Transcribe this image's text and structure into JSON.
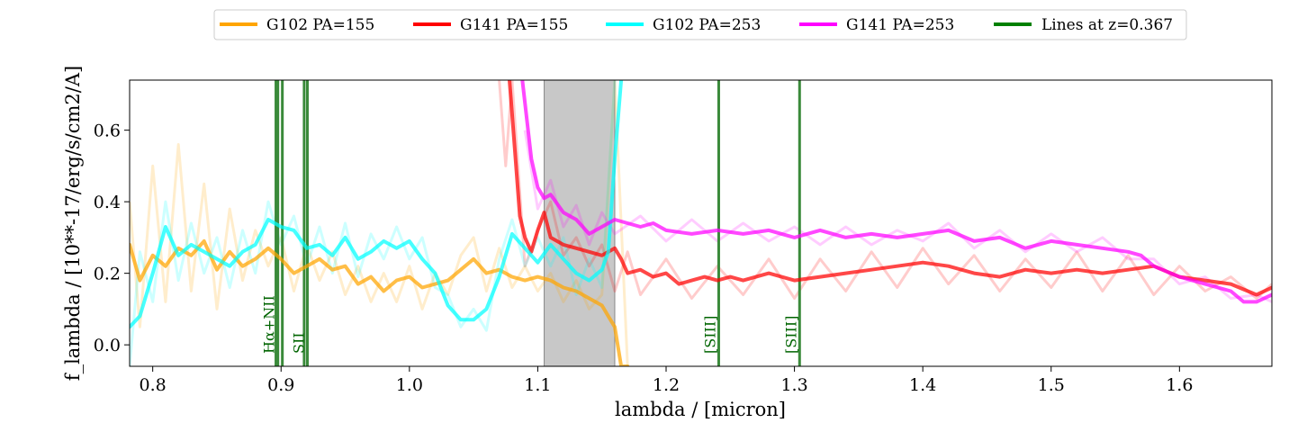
{
  "chart_data": {
    "type": "line",
    "xlabel": "lambda / [micron]",
    "ylabel": "f_lambda / [10**-17/erg/s/cm2/A]",
    "xlim": [
      0.782,
      1.672
    ],
    "ylim": [
      -0.06,
      0.74
    ],
    "x_ticks": [
      0.8,
      0.9,
      1.0,
      1.1,
      1.2,
      1.3,
      1.4,
      1.5,
      1.6
    ],
    "x_tick_labels": [
      "0.8",
      "0.9",
      "1.0",
      "1.1",
      "1.2",
      "1.3",
      "1.4",
      "1.5",
      "1.6"
    ],
    "y_ticks": [
      0.0,
      0.2,
      0.4,
      0.6
    ],
    "y_tick_labels": [
      "0.0",
      "0.2",
      "0.4",
      "0.6"
    ],
    "legend_position": "top-center, outside plot",
    "shaded_region": {
      "x": [
        1.105,
        1.16
      ],
      "color": "#c8c8c8"
    },
    "legend": [
      {
        "label": "G102 PA=155",
        "color": "#ffa500"
      },
      {
        "label": "G141 PA=155",
        "color": "#ff0000"
      },
      {
        "label": "G102 PA=253",
        "color": "#00ffff"
      },
      {
        "label": "G141 PA=253",
        "color": "#ff00ff"
      },
      {
        "label": "Lines at z=0.367",
        "color": "#008000"
      }
    ],
    "emission_lines": {
      "color": "#3a8a3a",
      "lines": [
        {
          "x": 0.896,
          "label": ""
        },
        {
          "x": 0.8975,
          "label": "Hα+NII"
        },
        {
          "x": 0.901,
          "label": ""
        },
        {
          "x": 0.918,
          "label": ""
        },
        {
          "x": 0.9205,
          "label": "SII"
        },
        {
          "x": 1.241,
          "label": "[SIII]"
        },
        {
          "x": 1.304,
          "label": "[SIII]"
        }
      ]
    },
    "series": [
      {
        "name": "G102 PA=155",
        "color": "#ffa500",
        "x": [
          0.782,
          0.79,
          0.8,
          0.81,
          0.82,
          0.83,
          0.84,
          0.85,
          0.86,
          0.87,
          0.88,
          0.89,
          0.9,
          0.91,
          0.92,
          0.93,
          0.94,
          0.95,
          0.96,
          0.97,
          0.98,
          0.99,
          1.0,
          1.01,
          1.02,
          1.03,
          1.04,
          1.05,
          1.06,
          1.07,
          1.08,
          1.09,
          1.1,
          1.11,
          1.12,
          1.13,
          1.14,
          1.15,
          1.155,
          1.16,
          1.165,
          1.17
        ],
        "y": [
          0.28,
          0.18,
          0.25,
          0.22,
          0.27,
          0.25,
          0.29,
          0.21,
          0.26,
          0.22,
          0.24,
          0.27,
          0.24,
          0.2,
          0.22,
          0.24,
          0.21,
          0.22,
          0.17,
          0.19,
          0.15,
          0.18,
          0.19,
          0.16,
          0.17,
          0.18,
          0.21,
          0.24,
          0.2,
          0.21,
          0.19,
          0.18,
          0.19,
          0.18,
          0.16,
          0.15,
          0.13,
          0.11,
          0.08,
          0.05,
          -0.06,
          -0.06
        ]
      },
      {
        "name": "G141 PA=155",
        "color": "#ff0000",
        "x": [
          1.078,
          1.082,
          1.086,
          1.09,
          1.095,
          1.1,
          1.105,
          1.11,
          1.12,
          1.13,
          1.14,
          1.15,
          1.16,
          1.165,
          1.17,
          1.18,
          1.19,
          1.2,
          1.21,
          1.22,
          1.23,
          1.24,
          1.25,
          1.26,
          1.28,
          1.3,
          1.32,
          1.34,
          1.36,
          1.38,
          1.4,
          1.42,
          1.44,
          1.46,
          1.48,
          1.5,
          1.52,
          1.54,
          1.56,
          1.58,
          1.6,
          1.62,
          1.64,
          1.66,
          1.672
        ],
        "y": [
          0.74,
          0.55,
          0.36,
          0.3,
          0.26,
          0.32,
          0.37,
          0.3,
          0.28,
          0.27,
          0.26,
          0.25,
          0.27,
          0.24,
          0.2,
          0.21,
          0.19,
          0.2,
          0.17,
          0.18,
          0.19,
          0.18,
          0.19,
          0.18,
          0.2,
          0.18,
          0.19,
          0.2,
          0.21,
          0.22,
          0.23,
          0.22,
          0.2,
          0.19,
          0.21,
          0.2,
          0.21,
          0.2,
          0.21,
          0.22,
          0.19,
          0.18,
          0.17,
          0.14,
          0.16
        ]
      },
      {
        "name": "G102 PA=253",
        "color": "#00ffff",
        "x": [
          0.782,
          0.79,
          0.8,
          0.81,
          0.82,
          0.83,
          0.84,
          0.85,
          0.86,
          0.87,
          0.88,
          0.89,
          0.9,
          0.91,
          0.92,
          0.93,
          0.94,
          0.95,
          0.96,
          0.97,
          0.98,
          0.99,
          1.0,
          1.01,
          1.02,
          1.03,
          1.04,
          1.05,
          1.06,
          1.07,
          1.08,
          1.09,
          1.1,
          1.11,
          1.12,
          1.13,
          1.14,
          1.15,
          1.155,
          1.16,
          1.165
        ],
        "y": [
          0.05,
          0.08,
          0.2,
          0.33,
          0.25,
          0.28,
          0.26,
          0.24,
          0.22,
          0.26,
          0.28,
          0.35,
          0.33,
          0.32,
          0.27,
          0.28,
          0.25,
          0.3,
          0.24,
          0.26,
          0.29,
          0.27,
          0.29,
          0.24,
          0.2,
          0.11,
          0.07,
          0.07,
          0.1,
          0.19,
          0.31,
          0.27,
          0.23,
          0.28,
          0.24,
          0.2,
          0.18,
          0.21,
          0.26,
          0.52,
          0.74
        ]
      },
      {
        "name": "G141 PA=253",
        "color": "#ff00ff",
        "x": [
          1.088,
          1.095,
          1.1,
          1.105,
          1.11,
          1.12,
          1.13,
          1.14,
          1.15,
          1.16,
          1.17,
          1.18,
          1.19,
          1.2,
          1.22,
          1.24,
          1.26,
          1.28,
          1.3,
          1.32,
          1.34,
          1.36,
          1.38,
          1.4,
          1.42,
          1.44,
          1.46,
          1.48,
          1.5,
          1.52,
          1.54,
          1.56,
          1.57,
          1.58,
          1.6,
          1.62,
          1.64,
          1.65,
          1.66,
          1.672
        ],
        "y": [
          0.74,
          0.52,
          0.44,
          0.41,
          0.42,
          0.37,
          0.35,
          0.31,
          0.33,
          0.35,
          0.34,
          0.33,
          0.34,
          0.32,
          0.31,
          0.32,
          0.31,
          0.32,
          0.3,
          0.32,
          0.3,
          0.31,
          0.3,
          0.31,
          0.32,
          0.29,
          0.3,
          0.27,
          0.29,
          0.28,
          0.27,
          0.26,
          0.25,
          0.22,
          0.19,
          0.17,
          0.15,
          0.12,
          0.12,
          0.14
        ]
      }
    ],
    "noisy_series": [
      {
        "name": "G102 PA=155 unsmoothed",
        "color": "#ffa500",
        "x": [
          0.782,
          0.79,
          0.8,
          0.81,
          0.82,
          0.83,
          0.84,
          0.85,
          0.86,
          0.87,
          0.88,
          0.89,
          0.9,
          0.91,
          0.92,
          0.93,
          0.94,
          0.95,
          0.96,
          0.97,
          0.98,
          0.99,
          1.0,
          1.01,
          1.02,
          1.03,
          1.04,
          1.05,
          1.06,
          1.07,
          1.08,
          1.09,
          1.1,
          1.11,
          1.12,
          1.13,
          1.14,
          1.15,
          1.16,
          1.17
        ],
        "y": [
          0.4,
          0.05,
          0.5,
          0.12,
          0.56,
          0.15,
          0.45,
          0.1,
          0.38,
          0.18,
          0.32,
          0.22,
          0.3,
          0.15,
          0.28,
          0.18,
          0.26,
          0.14,
          0.22,
          0.12,
          0.2,
          0.12,
          0.22,
          0.1,
          0.2,
          0.14,
          0.25,
          0.3,
          0.15,
          0.27,
          0.16,
          0.22,
          0.15,
          0.2,
          0.12,
          0.18,
          0.1,
          0.14,
          0.74,
          -0.06
        ]
      },
      {
        "name": "G141 PA=155 unsmoothed",
        "color": "#ff0000",
        "x": [
          1.07,
          1.075,
          1.08,
          1.09,
          1.1,
          1.11,
          1.12,
          1.13,
          1.14,
          1.15,
          1.16,
          1.17,
          1.18,
          1.2,
          1.22,
          1.24,
          1.26,
          1.28,
          1.3,
          1.32,
          1.34,
          1.36,
          1.38,
          1.4,
          1.42,
          1.44,
          1.46,
          1.48,
          1.5,
          1.52,
          1.54,
          1.56,
          1.58,
          1.6,
          1.62,
          1.64,
          1.66,
          1.672
        ],
        "y": [
          0.74,
          0.5,
          0.74,
          0.22,
          0.32,
          0.4,
          0.25,
          0.3,
          0.22,
          0.28,
          0.15,
          0.26,
          0.14,
          0.24,
          0.13,
          0.22,
          0.14,
          0.24,
          0.13,
          0.24,
          0.15,
          0.26,
          0.16,
          0.27,
          0.17,
          0.25,
          0.15,
          0.24,
          0.16,
          0.26,
          0.15,
          0.25,
          0.14,
          0.22,
          0.15,
          0.19,
          0.13,
          0.17
        ]
      },
      {
        "name": "G102 PA=253 unsmoothed",
        "color": "#00ffff",
        "x": [
          0.782,
          0.79,
          0.8,
          0.81,
          0.82,
          0.83,
          0.84,
          0.85,
          0.86,
          0.87,
          0.88,
          0.89,
          0.9,
          0.91,
          0.92,
          0.93,
          0.94,
          0.95,
          0.96,
          0.97,
          0.98,
          0.99,
          1.0,
          1.01,
          1.02,
          1.03,
          1.04,
          1.05,
          1.06,
          1.07,
          1.08,
          1.09,
          1.1,
          1.11,
          1.12,
          1.13,
          1.14,
          1.15,
          1.16
        ],
        "y": [
          -0.06,
          0.26,
          0.12,
          0.4,
          0.18,
          0.34,
          0.2,
          0.3,
          0.16,
          0.32,
          0.2,
          0.4,
          0.28,
          0.36,
          0.22,
          0.33,
          0.2,
          0.34,
          0.19,
          0.31,
          0.24,
          0.33,
          0.24,
          0.3,
          0.16,
          0.14,
          0.05,
          0.1,
          0.04,
          0.24,
          0.35,
          0.22,
          0.3,
          0.22,
          0.3,
          0.14,
          0.24,
          0.16,
          0.74
        ]
      },
      {
        "name": "G141 PA=253 unsmoothed",
        "color": "#ff00ff",
        "x": [
          1.09,
          1.1,
          1.11,
          1.12,
          1.13,
          1.14,
          1.15,
          1.16,
          1.18,
          1.2,
          1.22,
          1.24,
          1.26,
          1.28,
          1.3,
          1.32,
          1.34,
          1.36,
          1.38,
          1.4,
          1.42,
          1.44,
          1.46,
          1.48,
          1.5,
          1.52,
          1.54,
          1.56,
          1.58,
          1.6,
          1.62,
          1.64,
          1.66,
          1.672
        ],
        "y": [
          0.6,
          0.38,
          0.46,
          0.33,
          0.39,
          0.28,
          0.37,
          0.31,
          0.36,
          0.29,
          0.35,
          0.29,
          0.34,
          0.29,
          0.33,
          0.28,
          0.33,
          0.28,
          0.32,
          0.29,
          0.34,
          0.27,
          0.32,
          0.26,
          0.31,
          0.26,
          0.3,
          0.24,
          0.24,
          0.17,
          0.19,
          0.13,
          0.14,
          0.12
        ]
      }
    ]
  }
}
